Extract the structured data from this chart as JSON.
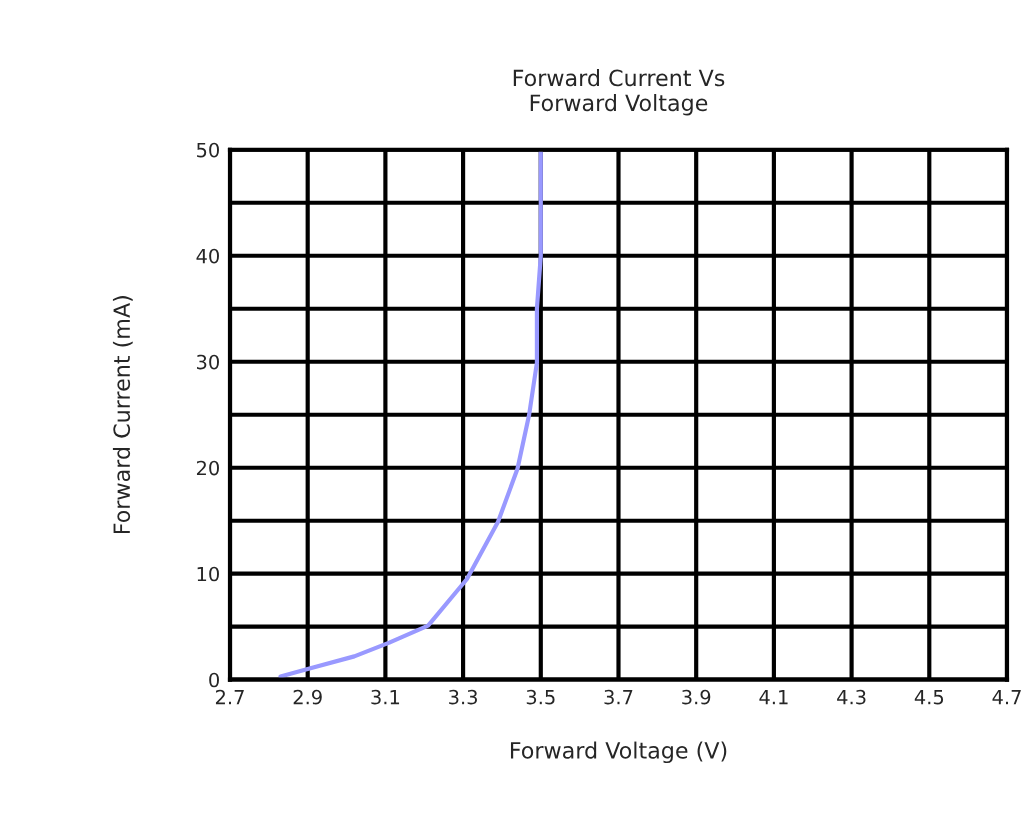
{
  "chart_data": {
    "type": "line",
    "title": "Forward Current Vs\nForward Voltage",
    "xlabel": "Forward Voltage (V)",
    "ylabel": "Forward Current (mA)",
    "x": [
      2.83,
      2.9,
      3.02,
      3.11,
      3.21,
      3.31,
      3.39,
      3.44,
      3.47,
      3.49,
      3.49,
      3.5,
      3.5
    ],
    "series": [
      {
        "color": "#9999ff",
        "values": [
          0.3,
          1,
          2.2,
          3.5,
          5.1,
          9.5,
          14.9,
          19.9,
          25,
          29.9,
          35,
          40,
          50
        ]
      }
    ],
    "xlim": [
      2.7,
      4.7
    ],
    "ylim": [
      0,
      50
    ],
    "xticks": [
      2.7,
      2.9,
      3.1,
      3.3,
      3.5,
      3.7,
      3.9,
      4.1,
      4.3,
      4.5,
      4.7
    ],
    "yticks": [
      0,
      10,
      20,
      30,
      40,
      50
    ],
    "grid": true,
    "marker": "none",
    "line_style": "solid"
  }
}
